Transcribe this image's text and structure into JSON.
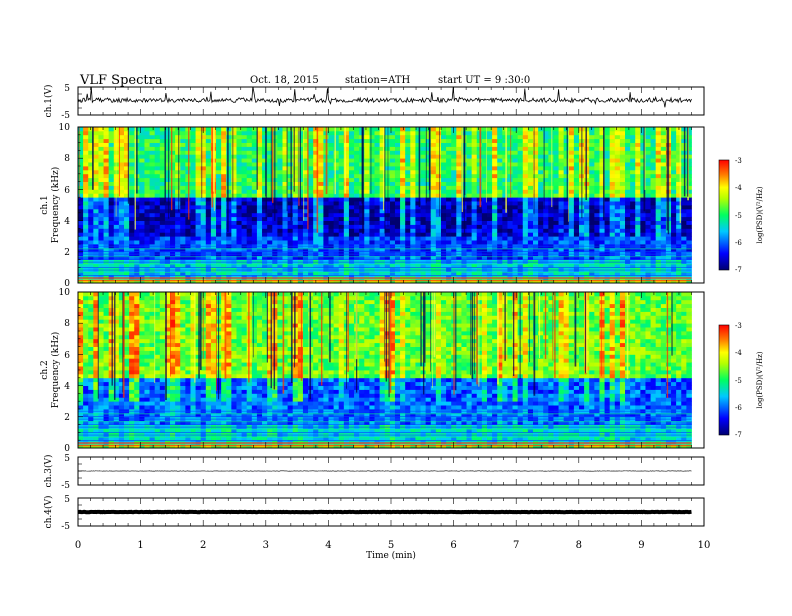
{
  "header": {
    "title": "VLF Spectra",
    "date": "Oct. 18, 2015",
    "station": "station=ATH",
    "start": "start UT = 9 :30:0"
  },
  "chart_data": [
    {
      "type": "line",
      "ylabel": "ch.1(V)",
      "ylim": [
        -5,
        5
      ],
      "yticks": [
        "5",
        "-5"
      ],
      "xlim": [
        0,
        10
      ],
      "baseline": 0.3,
      "grid": false
    },
    {
      "type": "heatmap",
      "ylabel": [
        "ch.1",
        "Frequency (kHz)"
      ],
      "ylim": [
        0,
        10
      ],
      "yticks": [
        "0",
        "2",
        "4",
        "6",
        "8",
        "10"
      ],
      "xlim": [
        0,
        10
      ],
      "data_end_min": 9.8,
      "colorbar": {
        "label": "log(PSD)(V²/Hz)",
        "ticks": [
          "-3",
          "-4",
          "-5",
          "-6",
          "-7"
        ],
        "range": [
          -7,
          -3
        ]
      },
      "bands_kHz_logpsd": [
        [
          0,
          0.3,
          -4.6
        ],
        [
          0.3,
          1.5,
          -5.6
        ],
        [
          1.5,
          3.0,
          -6.2
        ],
        [
          3.0,
          5.5,
          -6.7
        ],
        [
          5.5,
          10,
          -5.0
        ]
      ]
    },
    {
      "type": "heatmap",
      "ylabel": [
        "ch.2",
        "Frequency (kHz)"
      ],
      "ylim": [
        0,
        10
      ],
      "yticks": [
        "0",
        "2",
        "4",
        "6",
        "8",
        "10"
      ],
      "xlim": [
        0,
        10
      ],
      "data_end_min": 9.8,
      "colorbar": {
        "label": "log(PSD)(V²/Hz)",
        "ticks": [
          "-3",
          "-4",
          "-5",
          "-6",
          "-7"
        ],
        "range": [
          -7,
          -3
        ]
      },
      "bands_kHz_logpsd": [
        [
          0,
          0.3,
          -4.6
        ],
        [
          0.3,
          1.5,
          -5.5
        ],
        [
          1.5,
          4.5,
          -6.0
        ],
        [
          4.5,
          10,
          -4.7
        ]
      ]
    },
    {
      "type": "line",
      "ylabel": "ch.3(V)",
      "ylim": [
        -5,
        5
      ],
      "yticks": [
        "5",
        "-5"
      ],
      "xlim": [
        0,
        10
      ],
      "baseline": 0,
      "grid": false
    },
    {
      "type": "line",
      "ylabel": "ch.4(V)",
      "ylim": [
        -5,
        5
      ],
      "yticks": [
        "5",
        "-5"
      ],
      "xlim": [
        0,
        10
      ],
      "baseline": 0,
      "grid": false
    }
  ],
  "x_axis": {
    "label": "Time (min)",
    "ticks": [
      "0",
      "1",
      "2",
      "3",
      "4",
      "5",
      "6",
      "7",
      "8",
      "9",
      "10"
    ],
    "range": [
      0,
      10
    ]
  }
}
